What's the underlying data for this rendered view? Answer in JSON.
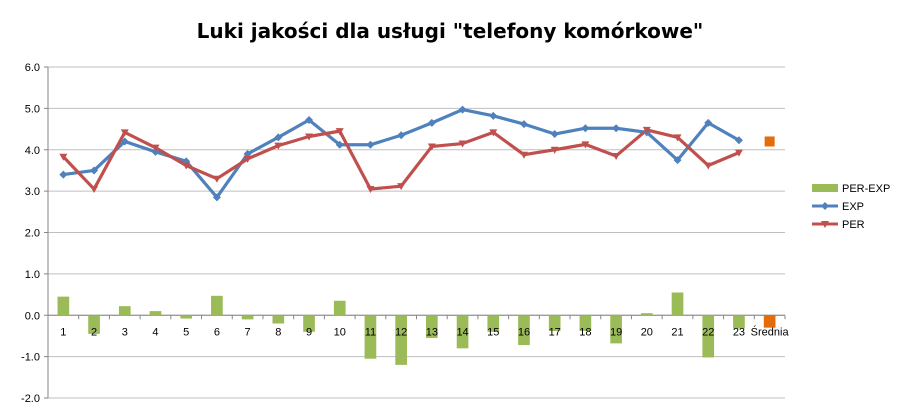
{
  "chart_data": {
    "type": "bar+line",
    "title": "Luki jakości dla usługi \"telefony komórkowe\"",
    "categories": [
      "1",
      "2",
      "3",
      "4",
      "5",
      "6",
      "7",
      "8",
      "9",
      "10",
      "11",
      "12",
      "13",
      "14",
      "15",
      "16",
      "17",
      "18",
      "19",
      "20",
      "21",
      "22",
      "23",
      "Średnia"
    ],
    "ylim": [
      -2.0,
      6.0
    ],
    "yticks": [
      "-2.0",
      "-1.0",
      "0.0",
      "1.0",
      "2.0",
      "3.0",
      "4.0",
      "5.0",
      "6.0"
    ],
    "grid": "horizontal",
    "legend_position": "right",
    "series": [
      {
        "name": "PER-EXP",
        "kind": "bar",
        "color": "#9bbb59",
        "highlight_color": "#e46c0a",
        "values": [
          0.45,
          -0.45,
          0.22,
          0.1,
          -0.08,
          0.47,
          -0.1,
          -0.2,
          -0.4,
          0.35,
          -1.05,
          -1.2,
          -0.55,
          -0.8,
          -0.4,
          -0.72,
          -0.38,
          -0.38,
          -0.68,
          0.05,
          0.55,
          -1.02,
          -0.32,
          -0.3
        ]
      },
      {
        "name": "EXP",
        "kind": "line",
        "color": "#4f81bd",
        "marker": "diamond",
        "highlight_color": "#e46c0a",
        "values": [
          3.4,
          3.5,
          4.2,
          3.95,
          3.72,
          2.85,
          3.9,
          4.3,
          4.72,
          4.12,
          4.12,
          4.35,
          4.65,
          4.97,
          4.82,
          4.62,
          4.38,
          4.52,
          4.52,
          4.42,
          3.75,
          4.65,
          4.23,
          4.2
        ]
      },
      {
        "name": "PER",
        "kind": "line",
        "color": "#c0504d",
        "marker": "triangle-down",
        "highlight_color": "#e46c0a",
        "values": [
          3.83,
          3.05,
          4.42,
          4.05,
          3.62,
          3.3,
          3.78,
          4.1,
          4.32,
          4.45,
          3.05,
          3.12,
          4.08,
          4.15,
          4.42,
          3.88,
          4.0,
          4.13,
          3.85,
          4.48,
          4.3,
          3.62,
          3.93,
          3.9
        ]
      }
    ]
  }
}
